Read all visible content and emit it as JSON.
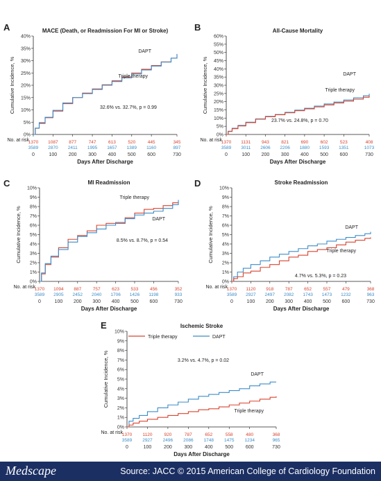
{
  "colors": {
    "triple": "#d8432e",
    "dapt": "#3b8cc8",
    "axis": "#222222",
    "footer_bg": "#1b2f63"
  },
  "risk_row_label": "No. at risk",
  "footer": {
    "logo": "Medscape",
    "source": "Source: JACC © 2015 American College of Cardiology Foundation"
  },
  "chart_data": [
    {
      "panel": "A",
      "type": "line",
      "title": "MACE (Death, or Readmission For MI or Stroke)",
      "xlabel": "Days After Discharge",
      "ylabel": "Cumulative Incidence, %",
      "xlim": [
        0,
        730
      ],
      "ylim": [
        0,
        40
      ],
      "xticks": [
        0,
        100,
        200,
        300,
        400,
        500,
        600,
        730
      ],
      "yticks": [
        0,
        5,
        10,
        15,
        20,
        25,
        30,
        35,
        40
      ],
      "ytick_labels": [
        "0%",
        "5%",
        "10%",
        "15%",
        "20%",
        "25%",
        "30%",
        "35%",
        "40%"
      ],
      "annotation": "32.6% vs. 32.7%, p = 0.99",
      "series": [
        {
          "name": "Triple therapy",
          "color": "#d8432e",
          "x": [
            0,
            10,
            30,
            60,
            100,
            150,
            200,
            250,
            300,
            350,
            400,
            450,
            500,
            550,
            600,
            650,
            700,
            730
          ],
          "y": [
            0,
            2.5,
            4.5,
            6.8,
            9.5,
            12.5,
            15,
            16.8,
            18.5,
            20.2,
            21.8,
            23.4,
            25,
            26.5,
            28,
            29.5,
            31,
            32.7
          ]
        },
        {
          "name": "DAPT",
          "color": "#3b8cc8",
          "x": [
            0,
            10,
            30,
            60,
            100,
            150,
            200,
            250,
            300,
            350,
            400,
            450,
            500,
            550,
            600,
            650,
            700,
            730
          ],
          "y": [
            0,
            2.6,
            4.8,
            7,
            9.8,
            12.8,
            15,
            16.6,
            18.3,
            20,
            21.5,
            23,
            24.6,
            26.2,
            27.8,
            29.4,
            31,
            32.6
          ]
        }
      ],
      "risk": {
        "triple": [
          "1370",
          "1087",
          "877",
          "747",
          "613",
          "520",
          "445",
          "345"
        ],
        "dapt": [
          "3589",
          "2870",
          "2411",
          "1995",
          "1657",
          "1389",
          "1160",
          "897"
        ]
      },
      "labels": {
        "dapt": "DAPT",
        "triple": "Triple therapy"
      }
    },
    {
      "panel": "B",
      "type": "line",
      "title": "All-Cause Mortality",
      "xlabel": "Days After Discharge",
      "ylabel": "Cumulative Incidence, %",
      "xlim": [
        0,
        730
      ],
      "ylim": [
        0,
        60
      ],
      "xticks": [
        0,
        100,
        200,
        300,
        400,
        500,
        600,
        730
      ],
      "yticks": [
        0,
        5,
        10,
        15,
        20,
        25,
        30,
        35,
        40,
        45,
        50,
        55,
        60
      ],
      "ytick_labels": [
        "0%",
        "5%",
        "10%",
        "15%",
        "20%",
        "25%",
        "30%",
        "35%",
        "40%",
        "45%",
        "50%",
        "55%",
        "60%"
      ],
      "annotation": "23.7% vs. 24.8%, p = 0.70",
      "series": [
        {
          "name": "DAPT",
          "color": "#3b8cc8",
          "x": [
            0,
            10,
            30,
            60,
            100,
            150,
            200,
            250,
            300,
            350,
            400,
            450,
            500,
            550,
            600,
            650,
            700,
            730
          ],
          "y": [
            0,
            2,
            3.8,
            5.5,
            7.5,
            9.5,
            11,
            12.2,
            13.5,
            14.8,
            16,
            17.3,
            18.6,
            19.8,
            21,
            22.3,
            23.6,
            24.8
          ]
        },
        {
          "name": "Triple therapy",
          "color": "#d8432e",
          "x": [
            0,
            10,
            30,
            60,
            100,
            150,
            200,
            250,
            300,
            350,
            400,
            450,
            500,
            550,
            600,
            650,
            700,
            730
          ],
          "y": [
            0,
            1.8,
            3.5,
            5.2,
            7.2,
            9.3,
            10.8,
            12,
            13.2,
            14.5,
            15.6,
            16.8,
            18,
            19.2,
            20.3,
            21.5,
            22.7,
            23.7
          ]
        }
      ],
      "risk": {
        "triple": [
          "1370",
          "1131",
          "943",
          "821",
          "690",
          "602",
          "523",
          "408"
        ],
        "dapt": [
          "3589",
          "3011",
          "2606",
          "2206",
          "1880",
          "1593",
          "1351",
          "1073"
        ]
      },
      "labels": {
        "dapt": "DAPT",
        "triple": "Triple therapy"
      }
    },
    {
      "panel": "C",
      "type": "line",
      "title": "MI Readmission",
      "xlabel": "Days After Discharge",
      "ylabel": "Cumulative Incidence, %",
      "xlim": [
        0,
        730
      ],
      "ylim": [
        0,
        10
      ],
      "xticks": [
        0,
        100,
        200,
        300,
        400,
        500,
        600,
        730
      ],
      "yticks": [
        0,
        1,
        2,
        3,
        4,
        5,
        6,
        7,
        8,
        9,
        10
      ],
      "ytick_labels": [
        "0%",
        "1%",
        "2%",
        "3%",
        "4%",
        "5%",
        "6%",
        "7%",
        "8%",
        "9%",
        "10%"
      ],
      "annotation": "8.5% vs. 8.7%, p = 0.54",
      "series": [
        {
          "name": "Triple therapy",
          "color": "#d8432e",
          "x": [
            0,
            10,
            30,
            60,
            100,
            150,
            200,
            250,
            300,
            350,
            400,
            450,
            500,
            550,
            600,
            650,
            700,
            730
          ],
          "y": [
            0,
            0.8,
            1.8,
            2.6,
            3.6,
            4.5,
            4.9,
            5.4,
            6.0,
            6.2,
            6.2,
            6.8,
            7.3,
            7.7,
            7.8,
            8.1,
            8.4,
            8.5
          ]
        },
        {
          "name": "DAPT",
          "color": "#3b8cc8",
          "x": [
            0,
            10,
            30,
            60,
            100,
            150,
            200,
            250,
            300,
            350,
            400,
            450,
            500,
            550,
            600,
            650,
            700,
            730
          ],
          "y": [
            0,
            0.9,
            1.9,
            2.7,
            3.4,
            4.2,
            4.8,
            5.2,
            5.6,
            6.0,
            6.3,
            6.7,
            7.1,
            7.3,
            7.5,
            7.8,
            8.2,
            8.7
          ]
        }
      ],
      "risk": {
        "triple": [
          "1370",
          "1094",
          "887",
          "757",
          "623",
          "533",
          "456",
          "352"
        ],
        "dapt": [
          "3589",
          "2905",
          "2452",
          "2040",
          "1706",
          "1426",
          "1198",
          "933"
        ]
      },
      "labels": {
        "dapt": "DAPT",
        "triple": "Triple therapy"
      }
    },
    {
      "panel": "D",
      "type": "line",
      "title": "Stroke Readmission",
      "xlabel": "Days After Discharge",
      "ylabel": "Cumulative Incidence, %",
      "xlim": [
        0,
        730
      ],
      "ylim": [
        0,
        10
      ],
      "xticks": [
        0,
        100,
        200,
        300,
        400,
        500,
        600,
        730
      ],
      "yticks": [
        0,
        1,
        2,
        3,
        4,
        5,
        6,
        7,
        8,
        9,
        10
      ],
      "ytick_labels": [
        "0%",
        "1%",
        "2%",
        "3%",
        "4%",
        "5%",
        "6%",
        "7%",
        "8%",
        "9%",
        "10%"
      ],
      "annotation": "4.7% vs. 5.3%, p = 0.23",
      "series": [
        {
          "name": "DAPT",
          "color": "#3b8cc8",
          "x": [
            0,
            10,
            30,
            60,
            100,
            150,
            200,
            250,
            300,
            350,
            400,
            450,
            500,
            550,
            600,
            650,
            700,
            730
          ],
          "y": [
            0,
            0.5,
            1.0,
            1.4,
            1.8,
            2.2,
            2.6,
            2.9,
            3.2,
            3.5,
            3.8,
            4.0,
            4.3,
            4.5,
            4.7,
            4.9,
            5.1,
            5.3
          ]
        },
        {
          "name": "Triple therapy",
          "color": "#d8432e",
          "x": [
            0,
            10,
            30,
            60,
            100,
            150,
            200,
            250,
            300,
            350,
            400,
            450,
            500,
            550,
            600,
            650,
            700,
            730
          ],
          "y": [
            0,
            0.3,
            0.5,
            0.9,
            1.1,
            1.5,
            1.8,
            2.2,
            2.6,
            2.8,
            3.2,
            3.4,
            3.6,
            3.9,
            4.2,
            4.4,
            4.6,
            4.7
          ]
        }
      ],
      "risk": {
        "triple": [
          "1370",
          "1120",
          "918",
          "787",
          "652",
          "557",
          "479",
          "368"
        ],
        "dapt": [
          "3589",
          "2927",
          "2497",
          "2082",
          "1743",
          "1473",
          "1232",
          "963"
        ]
      },
      "labels": {
        "dapt": "DAPT",
        "triple": "Triple therapy"
      }
    },
    {
      "panel": "E",
      "type": "line",
      "title": "Ischemic Stroke",
      "xlabel": "Days After Discharge",
      "ylabel": "Cumulative Incidence, %",
      "xlim": [
        0,
        730
      ],
      "ylim": [
        0,
        10
      ],
      "xticks": [
        0,
        100,
        200,
        300,
        400,
        500,
        600,
        730
      ],
      "yticks": [
        0,
        1,
        2,
        3,
        4,
        5,
        6,
        7,
        8,
        9,
        10
      ],
      "ytick_labels": [
        "0%",
        "1%",
        "2%",
        "3%",
        "4%",
        "5%",
        "6%",
        "7%",
        "8%",
        "9%",
        "10%"
      ],
      "annotation": "3.2% vs. 4.7%, p = 0.02",
      "legend": [
        "Triple therapy",
        "DAPT"
      ],
      "series": [
        {
          "name": "DAPT",
          "color": "#3b8cc8",
          "x": [
            0,
            10,
            30,
            60,
            100,
            150,
            200,
            250,
            300,
            350,
            400,
            450,
            500,
            550,
            600,
            650,
            700,
            730
          ],
          "y": [
            0,
            0.6,
            0.9,
            1.2,
            1.6,
            2.0,
            2.3,
            2.6,
            2.9,
            3.2,
            3.4,
            3.6,
            3.8,
            4.0,
            4.3,
            4.5,
            4.7,
            4.7
          ]
        },
        {
          "name": "Triple therapy",
          "color": "#d8432e",
          "x": [
            0,
            10,
            30,
            60,
            100,
            150,
            200,
            250,
            300,
            350,
            400,
            450,
            500,
            550,
            600,
            650,
            700,
            730
          ],
          "y": [
            0,
            0.2,
            0.4,
            0.6,
            0.8,
            1.0,
            1.2,
            1.4,
            1.6,
            1.8,
            1.9,
            2.1,
            2.3,
            2.5,
            2.7,
            2.9,
            3.1,
            3.2
          ]
        }
      ],
      "risk": {
        "triple": [
          "1370",
          "1120",
          "920",
          "787",
          "652",
          "558",
          "480",
          "368"
        ],
        "dapt": [
          "3589",
          "2927",
          "2496",
          "2086",
          "1748",
          "1475",
          "1234",
          "965"
        ]
      },
      "labels": {
        "dapt": "DAPT",
        "triple": "Triple therapy"
      }
    }
  ]
}
